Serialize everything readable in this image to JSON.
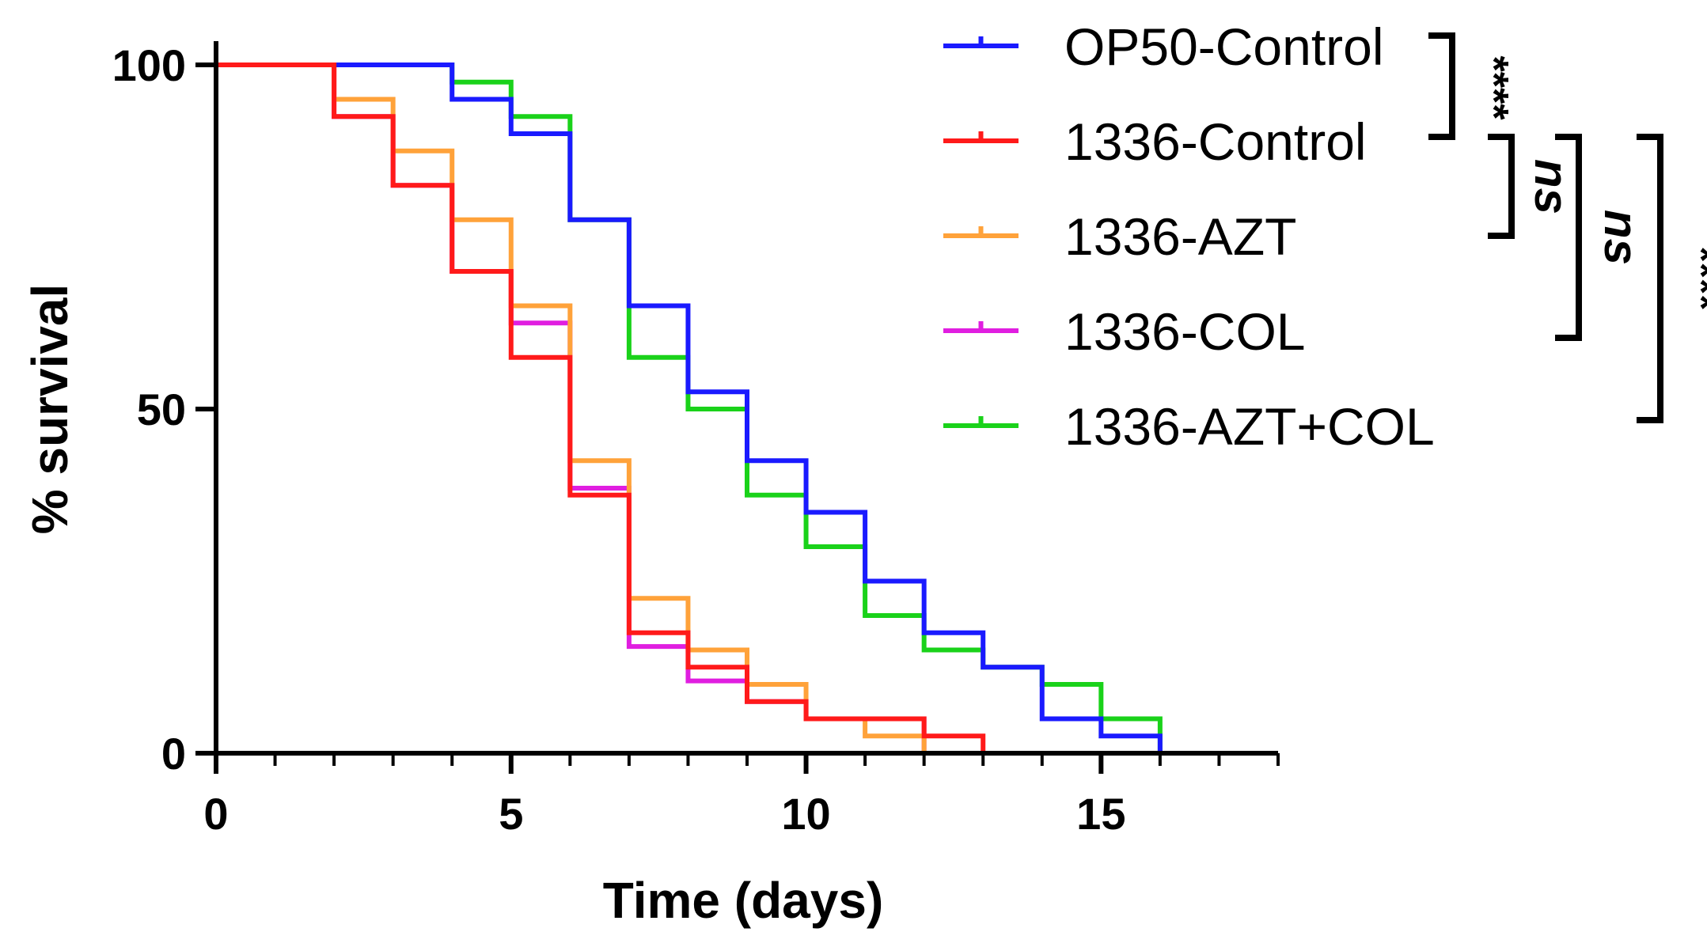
{
  "chart_data": {
    "type": "line",
    "subtype": "kaplan-meier-step",
    "title": "",
    "xlabel": "Time (days)",
    "ylabel": "% survival",
    "xlim": [
      0,
      18
    ],
    "ylim": [
      0,
      100
    ],
    "xticks": [
      0,
      5,
      10,
      15
    ],
    "xtick_labels": [
      "0",
      "5",
      "10",
      "15"
    ],
    "yticks": [
      0,
      50,
      100
    ],
    "ytick_labels": [
      "0",
      "50",
      "100"
    ],
    "grid": false,
    "legend_position": "top-right",
    "series": [
      {
        "name": "OP50-Control",
        "color": "#1a1aff",
        "times": [
          0,
          4,
          5,
          6,
          7,
          8,
          9,
          10,
          11,
          12,
          13,
          14,
          15,
          16
        ],
        "values": [
          100,
          95,
          90,
          77.5,
          65,
          52.5,
          42.5,
          35,
          25,
          17.5,
          12.5,
          5,
          2.5,
          0
        ]
      },
      {
        "name": "1336-Control",
        "color": "#ff1a1a",
        "times": [
          0,
          2,
          3,
          4,
          5,
          6,
          7,
          8,
          9,
          10,
          12,
          13
        ],
        "values": [
          100,
          92.5,
          82.5,
          70,
          57.5,
          37.5,
          17.5,
          12.5,
          7.5,
          5,
          2.5,
          0
        ]
      },
      {
        "name": "1336-AZT",
        "color": "#ffa23a",
        "times": [
          0,
          2,
          3,
          4,
          5,
          6,
          7,
          8,
          9,
          10,
          11,
          12
        ],
        "values": [
          100,
          95,
          87.5,
          77.5,
          65,
          42.5,
          22.5,
          15,
          10,
          5,
          2.5,
          0
        ]
      },
      {
        "name": "1336-COL",
        "color": "#e01ee0",
        "times": [
          0,
          2,
          3,
          4,
          5,
          6,
          7,
          8,
          9,
          10,
          11,
          12
        ],
        "values": [
          100,
          92.5,
          82.5,
          70,
          62.5,
          38.5,
          15.5,
          10.5,
          7.5,
          5,
          5,
          0
        ]
      },
      {
        "name": "1336-AZT+COL",
        "color": "#1ad21a",
        "times": [
          0,
          4,
          5,
          6,
          7,
          8,
          9,
          10,
          11,
          12,
          13,
          14,
          15,
          16
        ],
        "values": [
          100,
          97.5,
          92.5,
          77.5,
          57.5,
          50,
          37.5,
          30,
          20,
          15,
          12.5,
          10,
          5,
          0
        ]
      }
    ],
    "annotations": [
      {
        "between": [
          "OP50-Control",
          "1336-Control"
        ],
        "label": "****"
      },
      {
        "between": [
          "1336-Control",
          "1336-AZT"
        ],
        "label": "ns"
      },
      {
        "between": [
          "1336-Control",
          "1336-COL"
        ],
        "label": "ns"
      },
      {
        "between": [
          "1336-Control",
          "1336-AZT+COL"
        ],
        "label": "****"
      }
    ]
  }
}
